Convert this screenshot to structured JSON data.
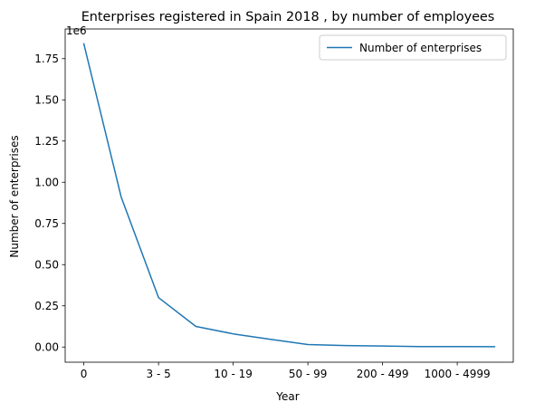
{
  "chart_data": {
    "type": "line",
    "title": "Enterprises registered in Spain 2018 , by number of employees",
    "xlabel": "Year",
    "ylabel": "Number of enterprises",
    "y_offset_label": "1e6",
    "x_tick_labels": [
      "0",
      "3 - 5",
      "10 - 19",
      "50 - 99",
      "200 - 499",
      "1000 - 4999"
    ],
    "x_tick_positions": [
      0,
      2,
      4,
      6,
      8,
      10
    ],
    "xlim": [
      -0.5,
      11.5
    ],
    "ylim": [
      -0.092,
      1.93
    ],
    "y_ticks": [
      0.0,
      0.25,
      0.5,
      0.75,
      1.0,
      1.25,
      1.5,
      1.75
    ],
    "y_tick_labels": [
      "0.00",
      "0.25",
      "0.50",
      "0.75",
      "1.00",
      "1.25",
      "1.50",
      "1.75"
    ],
    "legend": {
      "position": "top-right"
    },
    "grid": false,
    "series": [
      {
        "name": "Number of enterprises",
        "color": "#1f77b4",
        "x": [
          0,
          1,
          2,
          3,
          4,
          5,
          6,
          7,
          8,
          9,
          10,
          11
        ],
        "values": [
          1.84,
          0.91,
          0.3,
          0.125,
          0.08,
          0.047,
          0.015,
          0.009,
          0.006,
          0.003,
          0.0025,
          0.002
        ]
      }
    ]
  }
}
